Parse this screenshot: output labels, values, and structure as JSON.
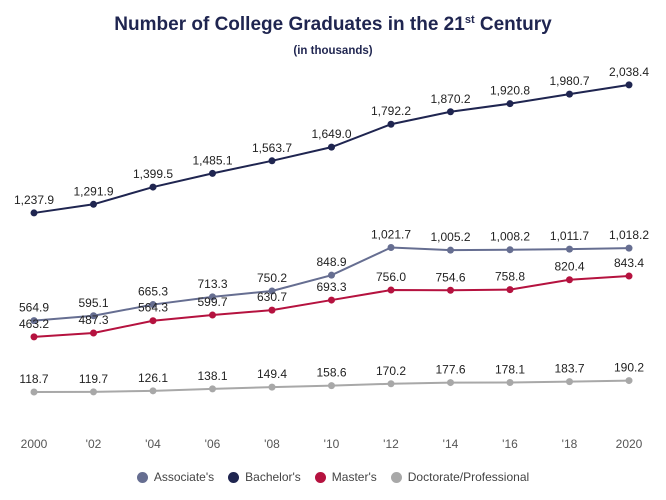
{
  "chart_data": {
    "type": "line",
    "title": "Number of College Graduates in the 21",
    "title_superscript": "st",
    "title_suffix": " Century",
    "subtitle": "(in thousands)",
    "x": [
      "2000",
      "'02",
      "'04",
      "'06",
      "'08",
      "'10",
      "'12",
      "'14",
      "'16",
      "'18",
      "2020"
    ],
    "series": [
      {
        "name": "Associate's",
        "color": "#666e91",
        "values": [
          564.9,
          595.1,
          665.3,
          713.3,
          750.2,
          848.9,
          1021.7,
          1005.2,
          1008.2,
          1011.7,
          1018.2
        ],
        "labels": [
          "564.9",
          "595.1",
          "665.3",
          "713.3",
          "750.2",
          "848.9",
          "1,021.7",
          "1,005.2",
          "1,008.2",
          "1,011.7",
          "1,018.2"
        ]
      },
      {
        "name": "Bachelor's",
        "color": "#1f2550",
        "values": [
          1237.9,
          1291.9,
          1399.5,
          1485.1,
          1563.7,
          1649.0,
          1792.2,
          1870.2,
          1920.8,
          1980.7,
          2038.4
        ],
        "labels": [
          "1,237.9",
          "1,291.9",
          "1,399.5",
          "1,485.1",
          "1,563.7",
          "1,649.0",
          "1,792.2",
          "1,870.2",
          "1,920.8",
          "1,980.7",
          "2,038.4"
        ]
      },
      {
        "name": "Master's",
        "color": "#b5123f",
        "values": [
          463.2,
          487.3,
          564.3,
          599.7,
          630.7,
          693.3,
          756.0,
          754.6,
          758.8,
          820.4,
          843.4
        ],
        "labels": [
          "463.2",
          "487.3",
          "564.3",
          "599.7",
          "630.7",
          "693.3",
          "756.0",
          "754.6",
          "758.8",
          "820.4",
          "843.4"
        ]
      },
      {
        "name": "Doctorate/Professional",
        "color": "#a8a8a8",
        "values": [
          118.7,
          119.7,
          126.1,
          138.1,
          149.4,
          158.6,
          170.2,
          177.6,
          178.1,
          183.7,
          190.2
        ],
        "labels": [
          "118.7",
          "119.7",
          "126.1",
          "138.1",
          "149.4",
          "158.6",
          "170.2",
          "177.6",
          "178.1",
          "183.7",
          "190.2"
        ]
      }
    ],
    "xlabel": "",
    "ylabel": "",
    "ylim": [
      0,
      2100
    ],
    "grid": false,
    "legend": "bottom"
  }
}
